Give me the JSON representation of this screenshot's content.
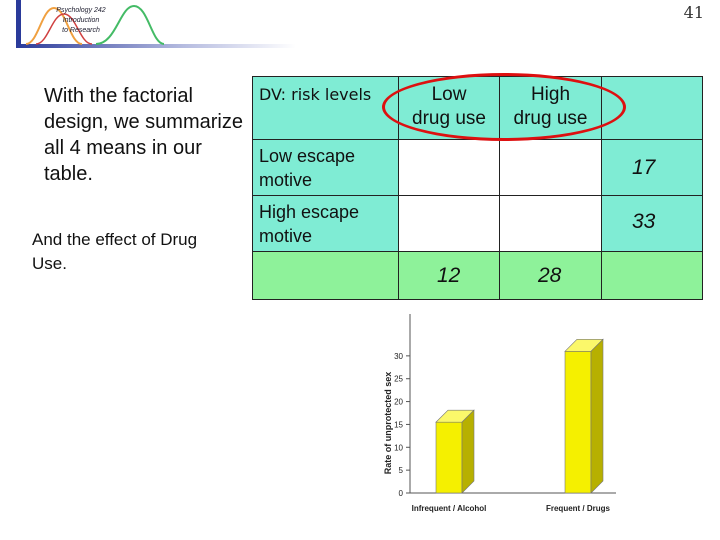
{
  "header": {
    "logo_lines": [
      "Psychology 242",
      "Introduction",
      "to Research"
    ],
    "page_number": "41"
  },
  "left": {
    "bullet": "With the factorial design, we summarize all 4 means in our table.",
    "effect": "And the effect of Drug Use."
  },
  "table": {
    "dv_label": "DV: risk levels",
    "col_low": [
      "Low",
      "drug use"
    ],
    "col_high": [
      "High",
      "drug use"
    ],
    "row_low": "Low escape motive",
    "row_high": "High escape motive",
    "row_low_mean": "17",
    "row_high_mean": "33",
    "col_low_mean": "12",
    "col_high_mean": "28",
    "colors": {
      "teal": "#7fecd4",
      "green": "#8ef29a",
      "highlight": "#dd1010"
    }
  },
  "chart_data": {
    "type": "bar",
    "categories": [
      "Infrequent / Alcohol",
      "Frequent / Drugs"
    ],
    "values": [
      15.5,
      31
    ],
    "ylabel": "Rate of unprotected sex",
    "ylim": [
      0,
      35
    ],
    "yticks": [
      "0",
      "5",
      "10",
      "15",
      "20",
      "25",
      "30"
    ],
    "bar_color": "#f5f000",
    "grid": false
  }
}
